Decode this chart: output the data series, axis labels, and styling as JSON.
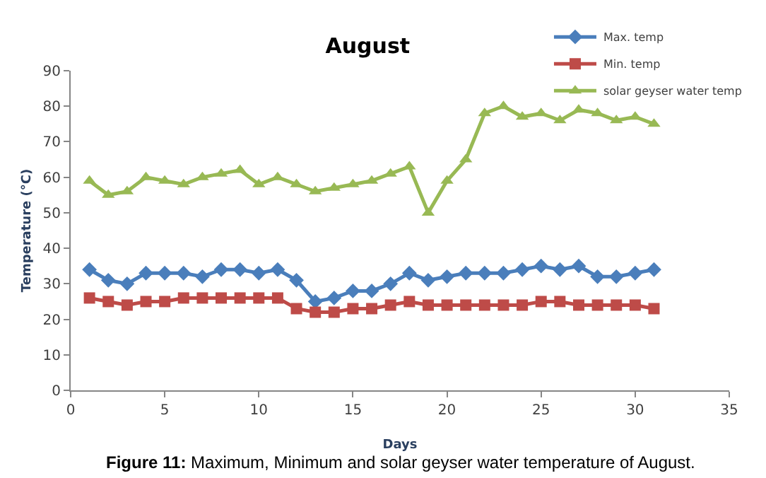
{
  "chart_data": {
    "type": "line",
    "title": "August",
    "xlabel": "Days",
    "ylabel": "Temperature (°C)",
    "x": [
      1,
      2,
      3,
      4,
      5,
      6,
      7,
      8,
      9,
      10,
      11,
      12,
      13,
      14,
      15,
      16,
      17,
      18,
      19,
      20,
      21,
      22,
      23,
      24,
      25,
      26,
      27,
      28,
      29,
      30,
      31
    ],
    "series": [
      {
        "name": "Max. temp",
        "color": "#4a7ebb",
        "marker": "diamond",
        "values": [
          34,
          31,
          30,
          33,
          33,
          33,
          32,
          34,
          34,
          33,
          34,
          31,
          25,
          26,
          28,
          28,
          30,
          33,
          31,
          32,
          33,
          33,
          33,
          34,
          35,
          34,
          35,
          32,
          32,
          33,
          34
        ]
      },
      {
        "name": "Min. temp",
        "color": "#be4b48",
        "marker": "square",
        "values": [
          26,
          25,
          24,
          25,
          25,
          26,
          26,
          26,
          26,
          26,
          26,
          23,
          22,
          22,
          23,
          23,
          24,
          25,
          24,
          24,
          24,
          24,
          24,
          24,
          25,
          25,
          24,
          24,
          24,
          24,
          23
        ]
      },
      {
        "name": "solar geyser water temp",
        "color": "#98b954",
        "marker": "triangle",
        "values": [
          59,
          55,
          56,
          60,
          59,
          58,
          60,
          61,
          62,
          58,
          60,
          58,
          56,
          57,
          58,
          59,
          61,
          63,
          50,
          59,
          65,
          78,
          80,
          77,
          78,
          76,
          79,
          78,
          76,
          77,
          75
        ]
      }
    ],
    "xlim": [
      0,
      35
    ],
    "xticks": [
      0,
      5,
      10,
      15,
      20,
      25,
      30,
      35
    ],
    "ylim": [
      0,
      90
    ],
    "yticks": [
      0,
      10,
      20,
      30,
      40,
      50,
      60,
      70,
      80,
      90
    ],
    "legend": "top right",
    "line_style": "solid",
    "annotations": [
      "Figure 11: Maximum, Minimum and solar geyser water temperature of August."
    ]
  }
}
